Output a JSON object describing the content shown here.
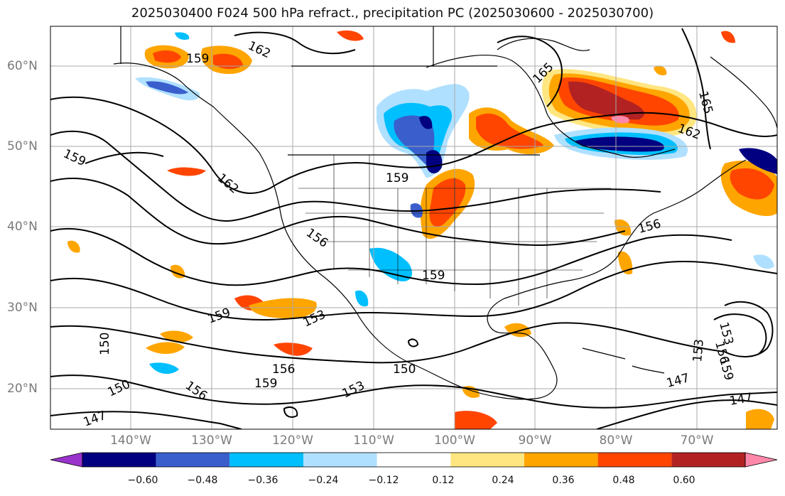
{
  "title": "2025030400 F024 500 hPa refract., precipitation PC (2025030600 - 2025030700)",
  "lat_ticks": [
    "60°N",
    "50°N",
    "40°N",
    "30°N",
    "20°N"
  ],
  "lon_ticks": [
    "140°W",
    "130°W",
    "120°W",
    "110°W",
    "100°W",
    "90°W",
    "80°W",
    "70°W"
  ],
  "colorbar": {
    "labels": [
      "−0.60",
      "−0.48",
      "−0.36",
      "−0.24",
      "−0.12",
      "0.12",
      "0.24",
      "0.36",
      "0.48",
      "0.60"
    ],
    "colors": [
      "#9933cc",
      "#000080",
      "#3a5fcd",
      "#00bfff",
      "#b0e0ff",
      "#ffffff",
      "#ffe680",
      "#ffa500",
      "#ff4500",
      "#b22222",
      "#ff88aa"
    ]
  },
  "contour_labels": [
    {
      "text": "162"
    },
    {
      "text": "159"
    },
    {
      "text": "165"
    },
    {
      "text": "165"
    },
    {
      "text": "162"
    },
    {
      "text": "159"
    },
    {
      "text": "162"
    },
    {
      "text": "159"
    },
    {
      "text": "156"
    },
    {
      "text": "156"
    },
    {
      "text": "159"
    },
    {
      "text": "159"
    },
    {
      "text": "153"
    },
    {
      "text": "150"
    },
    {
      "text": "156"
    },
    {
      "text": "150"
    },
    {
      "text": "156"
    },
    {
      "text": "159"
    },
    {
      "text": "150"
    },
    {
      "text": "153"
    },
    {
      "text": "147"
    },
    {
      "text": "153"
    },
    {
      "text": "156"
    },
    {
      "text": "159"
    },
    {
      "text": "153"
    },
    {
      "text": "147"
    },
    {
      "text": "147"
    }
  ]
}
